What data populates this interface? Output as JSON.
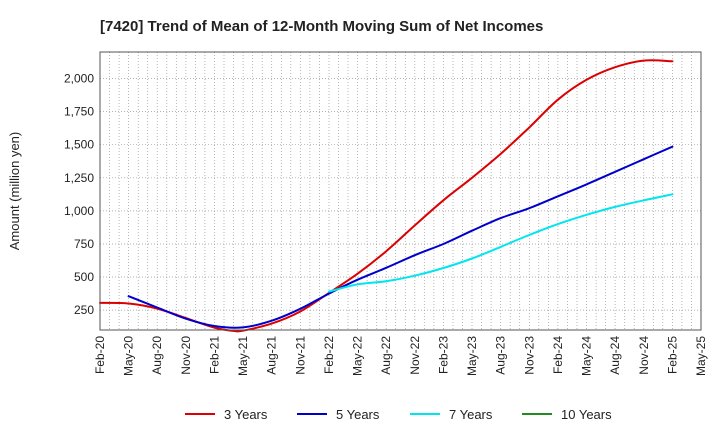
{
  "chart_data": {
    "type": "line",
    "title": "[7420]  Trend of Mean of 12-Month Moving Sum of Net Incomes",
    "xlabel": "",
    "ylabel": "Amount (million yen)",
    "ylim": [
      100,
      2200
    ],
    "yticks": [
      250,
      500,
      750,
      1000,
      1250,
      1500,
      1750,
      2000
    ],
    "ytick_labels": [
      "250",
      "500",
      "750",
      "1,000",
      "1,250",
      "1,500",
      "1,750",
      "2,000"
    ],
    "x_start": "2020-02",
    "x_end": "2025-05",
    "xtick_labels": [
      "Feb-20",
      "May-20",
      "Aug-20",
      "Nov-20",
      "Feb-21",
      "May-21",
      "Aug-21",
      "Nov-21",
      "Feb-22",
      "May-22",
      "Aug-22",
      "Nov-22",
      "Feb-23",
      "May-23",
      "Aug-23",
      "Nov-23",
      "Feb-24",
      "May-24",
      "Aug-24",
      "Nov-24",
      "Feb-25",
      "May-25"
    ],
    "grid": true,
    "legend_position": "bottom",
    "series": [
      {
        "name": "3 Years",
        "color": "#dd0000",
        "points": [
          [
            "2020-02",
            305
          ],
          [
            "2020-05",
            300
          ],
          [
            "2020-08",
            262
          ],
          [
            "2020-11",
            190
          ],
          [
            "2021-02",
            118
          ],
          [
            "2021-04",
            93
          ],
          [
            "2021-05",
            95
          ],
          [
            "2021-08",
            148
          ],
          [
            "2021-11",
            240
          ],
          [
            "2022-02",
            380
          ],
          [
            "2022-05",
            525
          ],
          [
            "2022-08",
            695
          ],
          [
            "2022-11",
            890
          ],
          [
            "2023-02",
            1080
          ],
          [
            "2023-05",
            1250
          ],
          [
            "2023-08",
            1430
          ],
          [
            "2023-11",
            1630
          ],
          [
            "2024-02",
            1840
          ],
          [
            "2024-05",
            1990
          ],
          [
            "2024-08",
            2085
          ],
          [
            "2024-11",
            2135
          ],
          [
            "2025-02",
            2130
          ]
        ]
      },
      {
        "name": "5 Years",
        "color": "#0000cc",
        "points": [
          [
            "2020-05",
            355
          ],
          [
            "2020-08",
            270
          ],
          [
            "2020-11",
            185
          ],
          [
            "2021-02",
            130
          ],
          [
            "2021-05",
            120
          ],
          [
            "2021-08",
            170
          ],
          [
            "2021-11",
            260
          ],
          [
            "2022-02",
            375
          ],
          [
            "2022-05",
            480
          ],
          [
            "2022-08",
            570
          ],
          [
            "2022-11",
            665
          ],
          [
            "2023-02",
            750
          ],
          [
            "2023-05",
            850
          ],
          [
            "2023-08",
            945
          ],
          [
            "2023-11",
            1020
          ],
          [
            "2024-02",
            1110
          ],
          [
            "2024-05",
            1200
          ],
          [
            "2024-08",
            1295
          ],
          [
            "2024-11",
            1390
          ],
          [
            "2025-02",
            1485
          ]
        ]
      },
      {
        "name": "7 Years",
        "color": "#00e5ee",
        "points": [
          [
            "2022-02",
            390
          ],
          [
            "2022-05",
            445
          ],
          [
            "2022-08",
            468
          ],
          [
            "2022-11",
            510
          ],
          [
            "2023-02",
            568
          ],
          [
            "2023-05",
            640
          ],
          [
            "2023-08",
            728
          ],
          [
            "2023-11",
            818
          ],
          [
            "2024-02",
            900
          ],
          [
            "2024-05",
            970
          ],
          [
            "2024-08",
            1030
          ],
          [
            "2024-11",
            1080
          ],
          [
            "2025-02",
            1125
          ]
        ]
      },
      {
        "name": "10 Years",
        "color": "#228b22",
        "points": []
      }
    ]
  }
}
